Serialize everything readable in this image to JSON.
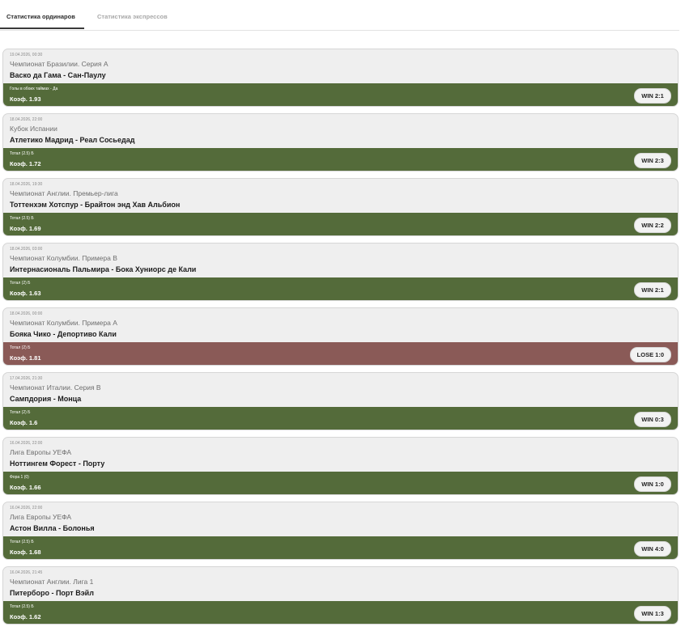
{
  "tabs": [
    {
      "label": "Статистика ординаров"
    },
    {
      "label": "Статистика экспрессов"
    }
  ],
  "cards": [
    {
      "date": "19.04.2026, 00:30",
      "league": "Чемпионат Бразилии. Серия А",
      "match": "Васко да Гама - Сан-Паулу",
      "bet": "Голы в обоих таймах - Да",
      "coef": "Коэф. 1.93",
      "result": "WIN 2:1",
      "status": "win"
    },
    {
      "date": "18.04.2026, 22:00",
      "league": "Кубок Испании",
      "match": "Атлетико Мадрид - Реал Сосьедад",
      "bet": "Тотал (2.5) Б",
      "coef": "Коэф. 1.72",
      "result": "WIN 2:3",
      "status": "win"
    },
    {
      "date": "18.04.2026, 19:30",
      "league": "Чемпионат Англии. Премьер-лига",
      "match": "Тоттенхэм Хотспур - Брайтон энд Хав Альбион",
      "bet": "Тотал (2.5) Б",
      "coef": "Коэф. 1.69",
      "result": "WIN 2:2",
      "status": "win"
    },
    {
      "date": "18.04.2026, 03:00",
      "league": "Чемпионат Колумбии. Примера B",
      "match": "Интернасиональ Пальмира - Бока Хуниорс де Кали",
      "bet": "Тотал (2) Б",
      "coef": "Коэф. 1.63",
      "result": "WIN 2:1",
      "status": "win"
    },
    {
      "date": "18.04.2026, 00:00",
      "league": "Чемпионат Колумбии. Примера A",
      "match": "Бояка Чико - Депортиво Кали",
      "bet": "Тотал (2) Б",
      "coef": "Коэф. 1.81",
      "result": "LOSE 1:0",
      "status": "lose"
    },
    {
      "date": "17.04.2026, 21:30",
      "league": "Чемпионат Италии. Серия B",
      "match": "Сампдория - Монца",
      "bet": "Тотал (2) Б",
      "coef": "Коэф. 1.6",
      "result": "WIN 0:3",
      "status": "win"
    },
    {
      "date": "16.04.2026, 22:00",
      "league": "Лига Европы УЕФА",
      "match": "Ноттингем Форест - Порту",
      "bet": "Фора 1 (0)",
      "coef": "Коэф. 1.66",
      "result": "WIN 1:0",
      "status": "win"
    },
    {
      "date": "16.04.2026, 22:00",
      "league": "Лига Европы УЕФА",
      "match": "Астон Вилла - Болонья",
      "bet": "Тотал (2.5) Б",
      "coef": "Коэф. 1.68",
      "result": "WIN 4:0",
      "status": "win"
    },
    {
      "date": "16.04.2026, 21:45",
      "league": "Чемпионат Англии. Лига 1",
      "match": "Питерборо - Порт Вэйл",
      "bet": "Тотал (2.5) Б",
      "coef": "Коэф. 1.62",
      "result": "WIN 1:3",
      "status": "win"
    }
  ]
}
